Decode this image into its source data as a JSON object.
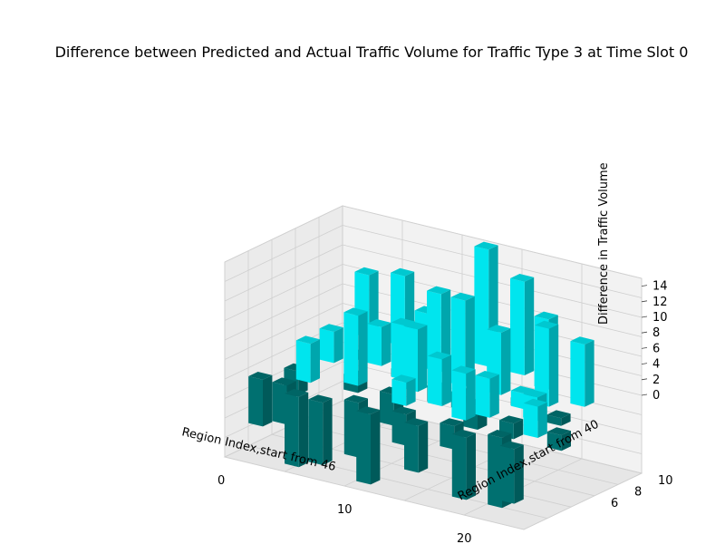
{
  "chart_data": {
    "type": "bar3d",
    "title": "Difference between Predicted and Actual Traffic Volume for Traffic Type 3 at Time Slot 0",
    "xlabel": "Region Index,start from 46",
    "ylabel": "Region Index,start from 40",
    "zlabel": "Difference in Traffic Volume",
    "x_ticks": [
      "0",
      "10",
      "20"
    ],
    "y_ticks": [
      "6",
      "8",
      "10"
    ],
    "z_ticks": [
      "0",
      "2",
      "4",
      "6",
      "8",
      "10",
      "12",
      "14"
    ],
    "xlim": [
      0,
      25
    ],
    "ylim": [
      0,
      10
    ],
    "zlim": [
      -10,
      15
    ],
    "colors": {
      "positive": "#00e5ee",
      "negative": "#007070"
    },
    "bars": [
      {
        "x": 2,
        "y": 9,
        "z": 8
      },
      {
        "x": 5,
        "y": 9,
        "z": 9
      },
      {
        "x": 8,
        "y": 8,
        "z": 6
      },
      {
        "x": 12,
        "y": 9,
        "z": 15
      },
      {
        "x": 15,
        "y": 9,
        "z": 12
      },
      {
        "x": 18,
        "y": 8,
        "z": 9
      },
      {
        "x": 22,
        "y": 7,
        "z": 8
      },
      {
        "x": 10,
        "y": 7,
        "z": 10
      },
      {
        "x": 13,
        "y": 6,
        "z": 11
      },
      {
        "x": 16,
        "y": 6,
        "z": 8
      },
      {
        "x": 20,
        "y": 6,
        "z": 10
      },
      {
        "x": 6,
        "y": 6,
        "z": 5
      },
      {
        "x": 3,
        "y": 5,
        "z": 4
      },
      {
        "x": 9,
        "y": 5,
        "z": 7
      },
      {
        "x": 11,
        "y": 4,
        "z": 8
      },
      {
        "x": 14,
        "y": 3,
        "z": 6
      },
      {
        "x": 18,
        "y": 3,
        "z": 5
      },
      {
        "x": 21,
        "y": 4,
        "z": 3
      },
      {
        "x": 7,
        "y": 3,
        "z": 9
      },
      {
        "x": 12,
        "y": 2,
        "z": 3
      },
      {
        "x": 17,
        "y": 2,
        "z": 6
      },
      {
        "x": 23,
        "y": 2,
        "z": 4
      },
      {
        "x": 4,
        "y": 2,
        "z": 5
      },
      {
        "x": 19,
        "y": 5,
        "z": 2
      },
      {
        "x": 1,
        "y": 1,
        "z": -6
      },
      {
        "x": 3,
        "y": 1,
        "z": -5
      },
      {
        "x": 5,
        "y": 0,
        "z": -9
      },
      {
        "x": 7,
        "y": 0,
        "z": -8
      },
      {
        "x": 9,
        "y": 1,
        "z": -7
      },
      {
        "x": 11,
        "y": 0,
        "z": -9
      },
      {
        "x": 13,
        "y": 1,
        "z": -4
      },
      {
        "x": 15,
        "y": 0,
        "z": -6
      },
      {
        "x": 17,
        "y": 1,
        "z": -3
      },
      {
        "x": 19,
        "y": 0,
        "z": -8
      },
      {
        "x": 21,
        "y": 1,
        "z": -9
      },
      {
        "x": 23,
        "y": 0,
        "z": -7
      },
      {
        "x": 2,
        "y": 3,
        "z": -3
      },
      {
        "x": 6,
        "y": 4,
        "z": -2
      },
      {
        "x": 10,
        "y": 3,
        "z": -4
      },
      {
        "x": 14,
        "y": 5,
        "z": -2
      },
      {
        "x": 16,
        "y": 4,
        "z": -3
      },
      {
        "x": 20,
        "y": 3,
        "z": -2
      },
      {
        "x": 8,
        "y": 6,
        "z": -1
      },
      {
        "x": 12,
        "y": 5,
        "z": -2
      },
      {
        "x": 22,
        "y": 5,
        "z": -1
      },
      {
        "x": 4,
        "y": 7,
        "z": -1
      },
      {
        "x": 18,
        "y": 6,
        "z": -1
      },
      {
        "x": 24,
        "y": 3,
        "z": -2
      }
    ]
  }
}
